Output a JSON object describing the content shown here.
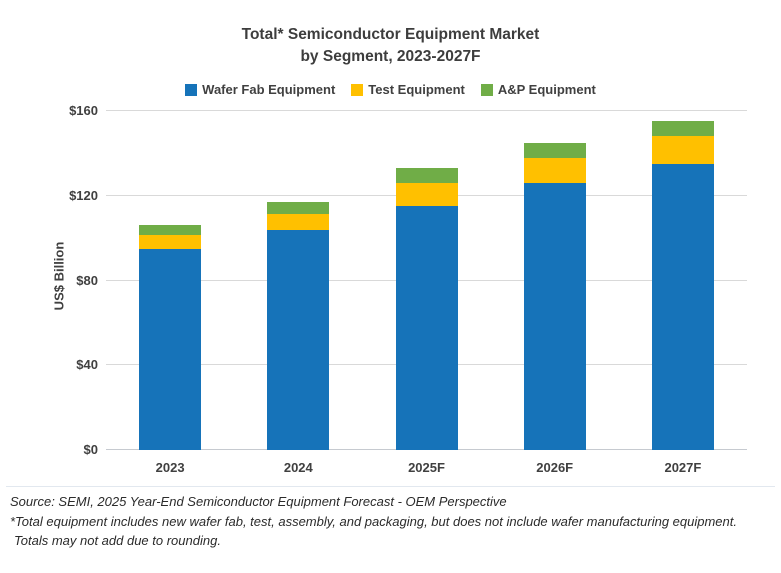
{
  "title": {
    "line1": "Total* Semiconductor Equipment Market",
    "line2": "by Segment, 2023-2027F"
  },
  "chart_data": {
    "type": "bar",
    "stacked": true,
    "title": "Total* Semiconductor Equipment Market by Segment, 2023-2027F",
    "categories": [
      "2023",
      "2024",
      "2025F",
      "2026F",
      "2027F"
    ],
    "series": [
      {
        "name": "Wafer Fab Equipment",
        "color": "#1673B9",
        "values": [
          95,
          104,
          115,
          126,
          135
        ]
      },
      {
        "name": "Test Equipment",
        "color": "#FFC000",
        "values": [
          6.3,
          7.5,
          11,
          12,
          13
        ]
      },
      {
        "name": "A&P Equipment",
        "color": "#70AD47",
        "values": [
          4.8,
          5.5,
          7,
          7,
          7.5
        ]
      }
    ],
    "totals_approx": [
      106,
      117,
      133,
      145,
      155.5
    ],
    "ylabel": "US$ Billion",
    "ylim": [
      0,
      160
    ],
    "yticks": [
      {
        "value": 0,
        "label": "$0"
      },
      {
        "value": 40,
        "label": "$40"
      },
      {
        "value": 80,
        "label": "$80"
      },
      {
        "value": 120,
        "label": "$120"
      },
      {
        "value": 160,
        "label": "$160"
      }
    ],
    "grid": true,
    "legend_position": "top"
  },
  "footer": {
    "line1": "Source: SEMI, 2025 Year-End Semiconductor Equipment Forecast - OEM Perspective",
    "line2": "*Total equipment includes new wafer fab, test, assembly, and packaging, but does not include wafer manufacturing equipment.",
    "line3": "Totals may not add due to rounding."
  },
  "colors": {
    "text": "#404040",
    "gridline": "#D9D9D9",
    "axis_line": "#C6CAD0",
    "background": "#FFFFFF"
  }
}
